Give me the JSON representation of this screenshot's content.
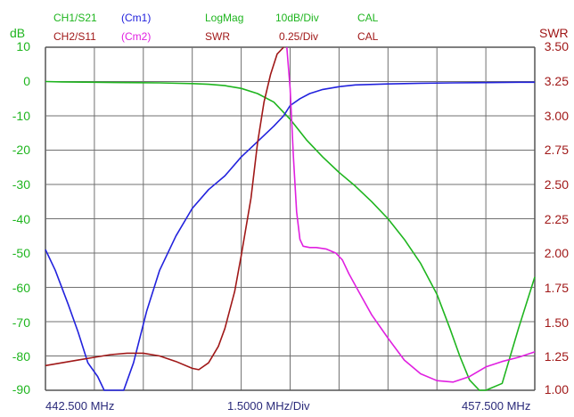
{
  "header": {
    "ch1_name": "CH1/S21",
    "ch1_marker": "(Cm1)",
    "ch1_format": "LogMag",
    "ch1_scale": "10dB/Div",
    "ch1_cal": "CAL",
    "ch2_name": "CH2/S11",
    "ch2_marker": "(Cm2)",
    "ch2_format": "SWR",
    "ch2_scale": "0.25/Div",
    "ch2_cal": "CAL"
  },
  "left_axis": {
    "unit": "dB",
    "ticks": [
      "10",
      "0",
      "-10",
      "-20",
      "-30",
      "-40",
      "-50",
      "-60",
      "-70",
      "-80",
      "-90"
    ]
  },
  "right_axis": {
    "unit": "SWR",
    "ticks": [
      "3.50",
      "3.25",
      "3.00",
      "2.75",
      "2.50",
      "2.25",
      "2.00",
      "1.75",
      "1.50",
      "1.25",
      "1.00"
    ]
  },
  "footer": {
    "start_freq": "442.500 MHz",
    "span_div": "1.5000 MHz/Div",
    "stop_freq": "457.500 MHz"
  },
  "colors": {
    "ch1": "#1fb51f",
    "ch2": "#a01818",
    "marker1": "#2222dd",
    "marker2": "#e020e0",
    "grid": "#707070"
  },
  "chart_data": {
    "type": "line",
    "x_unit": "MHz",
    "xlim": [
      442.5,
      457.5
    ],
    "ylim_left": [
      -90,
      10
    ],
    "ylim_right": [
      1.0,
      3.5
    ],
    "series": [
      {
        "name": "CH1/S21",
        "axis": "left",
        "x": [
          442.5,
          443.0,
          444.0,
          445.0,
          446.0,
          447.0,
          447.5,
          448.0,
          448.5,
          449.0,
          449.5,
          450.0,
          450.5,
          451.0,
          451.5,
          452.0,
          452.5,
          453.0,
          453.5,
          454.0,
          454.5,
          454.9,
          455.2,
          455.5,
          455.8,
          456.0,
          456.5,
          457.0,
          457.5
        ],
        "y": [
          0.0,
          -0.1,
          -0.2,
          -0.3,
          -0.4,
          -0.6,
          -0.8,
          -1.2,
          -2.0,
          -3.5,
          -6.0,
          -11.0,
          -17.0,
          -22.0,
          -26.5,
          -30.5,
          -35.0,
          -40.0,
          -46.0,
          -53.0,
          -62.0,
          -72.0,
          -80.0,
          -87.0,
          -90.0,
          -90.0,
          -88.0,
          -72.0,
          -57.0
        ]
      },
      {
        "name": "(Cm1)",
        "axis": "left",
        "x": [
          442.5,
          442.8,
          443.2,
          443.5,
          443.8,
          444.1,
          444.3,
          444.6,
          444.9,
          445.2,
          445.6,
          446.0,
          446.5,
          447.0,
          447.5,
          448.0,
          448.5,
          449.0,
          449.5,
          449.8,
          450.0,
          450.3,
          450.6,
          451.0,
          451.5,
          452.0,
          453.0,
          454.0,
          455.0,
          456.0,
          457.0,
          457.5
        ],
        "y": [
          -49.0,
          -55.0,
          -65.0,
          -73.0,
          -82.0,
          -86.0,
          -90.0,
          -90.0,
          -90.0,
          -82.0,
          -67.0,
          -55.0,
          -45.0,
          -37.0,
          -31.5,
          -27.5,
          -22.0,
          -17.5,
          -13.0,
          -10.0,
          -7.0,
          -5.0,
          -3.5,
          -2.3,
          -1.5,
          -1.0,
          -0.7,
          -0.5,
          -0.4,
          -0.3,
          -0.2,
          -0.2
        ]
      },
      {
        "name": "CH2/S11",
        "axis": "right",
        "x": [
          442.5,
          443.0,
          443.5,
          444.0,
          444.5,
          445.0,
          445.5,
          446.0,
          446.5,
          447.0,
          447.2,
          447.5,
          447.8,
          448.0,
          448.3,
          448.5,
          448.8,
          449.0,
          449.2,
          449.4,
          449.6,
          449.8
        ],
        "y": [
          1.18,
          1.2,
          1.22,
          1.24,
          1.26,
          1.27,
          1.27,
          1.25,
          1.21,
          1.16,
          1.15,
          1.2,
          1.32,
          1.45,
          1.72,
          1.98,
          2.4,
          2.8,
          3.1,
          3.3,
          3.45,
          3.5
        ]
      },
      {
        "name": "(Cm2)",
        "axis": "right",
        "x": [
          449.9,
          450.0,
          450.1,
          450.2,
          450.3,
          450.4,
          450.6,
          450.8,
          451.1,
          451.4,
          451.6,
          451.8,
          452.1,
          452.5,
          453.0,
          453.5,
          454.0,
          454.5,
          455.0,
          455.5,
          456.0,
          456.5,
          457.0,
          457.5
        ],
        "y": [
          3.5,
          3.2,
          2.7,
          2.3,
          2.1,
          2.05,
          2.04,
          2.04,
          2.03,
          2.0,
          1.95,
          1.85,
          1.72,
          1.55,
          1.38,
          1.22,
          1.12,
          1.07,
          1.06,
          1.1,
          1.17,
          1.21,
          1.24,
          1.28
        ]
      }
    ]
  }
}
